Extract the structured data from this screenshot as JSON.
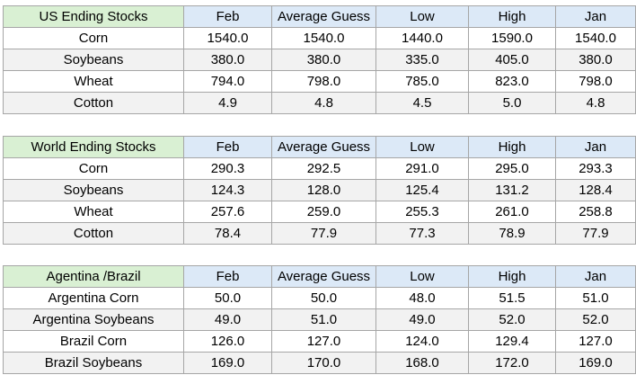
{
  "tables": [
    {
      "title": "US Ending Stocks",
      "columns": [
        "Feb",
        "Average Guess",
        "Low",
        "High",
        "Jan"
      ],
      "rows": [
        {
          "label": "Corn",
          "values": [
            "1540.0",
            "1540.0",
            "1440.0",
            "1590.0",
            "1540.0"
          ]
        },
        {
          "label": "Soybeans",
          "values": [
            "380.0",
            "380.0",
            "335.0",
            "405.0",
            "380.0"
          ]
        },
        {
          "label": "Wheat",
          "values": [
            "794.0",
            "798.0",
            "785.0",
            "823.0",
            "798.0"
          ]
        },
        {
          "label": "Cotton",
          "values": [
            "4.9",
            "4.8",
            "4.5",
            "5.0",
            "4.8"
          ]
        }
      ]
    },
    {
      "title": "World Ending Stocks",
      "columns": [
        "Feb",
        "Average Guess",
        "Low",
        "High",
        "Jan"
      ],
      "rows": [
        {
          "label": "Corn",
          "values": [
            "290.3",
            "292.5",
            "291.0",
            "295.0",
            "293.3"
          ]
        },
        {
          "label": "Soybeans",
          "values": [
            "124.3",
            "128.0",
            "125.4",
            "131.2",
            "128.4"
          ]
        },
        {
          "label": "Wheat",
          "values": [
            "257.6",
            "259.0",
            "255.3",
            "261.0",
            "258.8"
          ]
        },
        {
          "label": "Cotton",
          "values": [
            "78.4",
            "77.9",
            "77.3",
            "78.9",
            "77.9"
          ]
        }
      ]
    },
    {
      "title": "Agentina /Brazil",
      "columns": [
        "Feb",
        "Average Guess",
        "Low",
        "High",
        "Jan"
      ],
      "rows": [
        {
          "label": "Argentina Corn",
          "values": [
            "50.0",
            "50.0",
            "48.0",
            "51.5",
            "51.0"
          ]
        },
        {
          "label": "Argentina Soybeans",
          "values": [
            "49.0",
            "51.0",
            "49.0",
            "52.0",
            "52.0"
          ]
        },
        {
          "label": "Brazil Corn",
          "values": [
            "126.0",
            "127.0",
            "124.0",
            "129.4",
            "127.0"
          ]
        },
        {
          "label": "Brazil Soybeans",
          "values": [
            "169.0",
            "170.0",
            "168.0",
            "172.0",
            "169.0"
          ]
        }
      ]
    }
  ],
  "colors": {
    "title_cell_bg": "#d9f0d3",
    "header_bg": "#dce9f7",
    "alt_row_bg": "#f2f2f2",
    "border": "#a6a6a6"
  }
}
